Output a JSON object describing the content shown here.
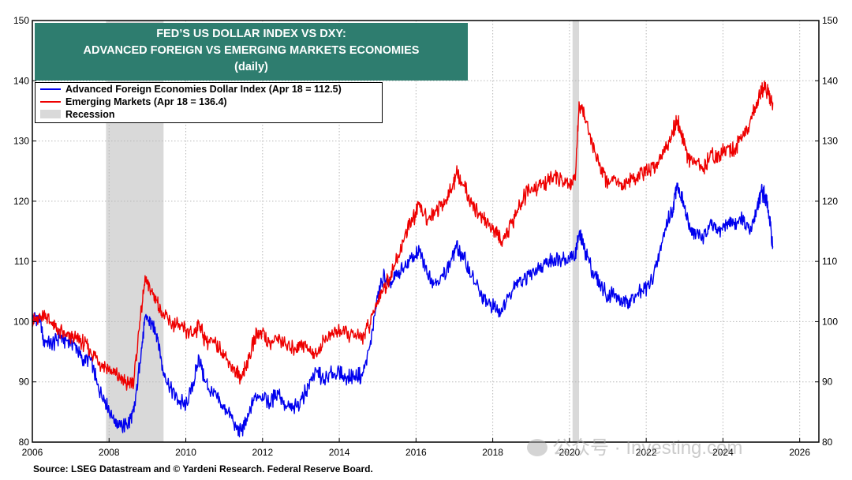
{
  "chart_data": {
    "type": "line",
    "title_lines": [
      "FED’S US DOLLAR INDEX VS DXY:",
      "ADVANCED FOREIGN VS EMERGING MARKETS ECONOMIES",
      "(daily)"
    ],
    "xlim": [
      2006,
      2026.5
    ],
    "ylim": [
      80,
      150
    ],
    "x_ticks": [
      2006,
      2008,
      2010,
      2012,
      2014,
      2016,
      2018,
      2020,
      2022,
      2024,
      2026
    ],
    "y_ticks": [
      80,
      90,
      100,
      110,
      120,
      130,
      140,
      150
    ],
    "grid": true,
    "legend_position": "top-left",
    "recessions": [
      {
        "start": 2007.92,
        "end": 2009.42
      },
      {
        "start": 2020.08,
        "end": 2020.25
      }
    ],
    "series": [
      {
        "name": "Advanced Foreign Economies Dollar Index (Apr 18 = 112.5)",
        "color": "#0000ee",
        "points": [
          [
            2006.0,
            100.5
          ],
          [
            2006.15,
            101.0
          ],
          [
            2006.3,
            97.0
          ],
          [
            2006.5,
            96.0
          ],
          [
            2006.7,
            97.5
          ],
          [
            2006.9,
            96.8
          ],
          [
            2007.1,
            96.5
          ],
          [
            2007.3,
            93.5
          ],
          [
            2007.5,
            94.0
          ],
          [
            2007.7,
            89.5
          ],
          [
            2007.9,
            87.0
          ],
          [
            2008.1,
            84.0
          ],
          [
            2008.3,
            82.5
          ],
          [
            2008.5,
            83.0
          ],
          [
            2008.65,
            85.0
          ],
          [
            2008.8,
            93.0
          ],
          [
            2008.95,
            101.0
          ],
          [
            2009.1,
            99.5
          ],
          [
            2009.25,
            98.0
          ],
          [
            2009.4,
            92.0
          ],
          [
            2009.6,
            89.0
          ],
          [
            2009.8,
            87.0
          ],
          [
            2010.0,
            86.0
          ],
          [
            2010.2,
            90.0
          ],
          [
            2010.35,
            94.0
          ],
          [
            2010.5,
            90.0
          ],
          [
            2010.7,
            88.0
          ],
          [
            2010.9,
            86.5
          ],
          [
            2011.1,
            85.0
          ],
          [
            2011.3,
            82.5
          ],
          [
            2011.45,
            81.8
          ],
          [
            2011.6,
            83.5
          ],
          [
            2011.8,
            87.5
          ],
          [
            2012.0,
            88.0
          ],
          [
            2012.2,
            86.5
          ],
          [
            2012.4,
            88.5
          ],
          [
            2012.6,
            86.0
          ],
          [
            2012.8,
            85.5
          ],
          [
            2013.0,
            87.0
          ],
          [
            2013.2,
            89.5
          ],
          [
            2013.4,
            92.0
          ],
          [
            2013.6,
            90.0
          ],
          [
            2013.8,
            91.5
          ],
          [
            2014.0,
            91.5
          ],
          [
            2014.2,
            90.5
          ],
          [
            2014.4,
            91.0
          ],
          [
            2014.6,
            91.0
          ],
          [
            2014.8,
            96.0
          ],
          [
            2015.0,
            104.0
          ],
          [
            2015.15,
            107.5
          ],
          [
            2015.3,
            106.0
          ],
          [
            2015.5,
            107.5
          ],
          [
            2015.7,
            109.0
          ],
          [
            2015.9,
            110.5
          ],
          [
            2016.1,
            111.5
          ],
          [
            2016.3,
            108.0
          ],
          [
            2016.5,
            106.5
          ],
          [
            2016.7,
            107.5
          ],
          [
            2016.9,
            110.0
          ],
          [
            2017.05,
            112.5
          ],
          [
            2017.25,
            110.5
          ],
          [
            2017.45,
            107.5
          ],
          [
            2017.65,
            105.0
          ],
          [
            2017.85,
            103.0
          ],
          [
            2018.05,
            102.5
          ],
          [
            2018.2,
            101.5
          ],
          [
            2018.4,
            104.0
          ],
          [
            2018.6,
            106.5
          ],
          [
            2018.8,
            107.0
          ],
          [
            2019.0,
            108.0
          ],
          [
            2019.2,
            108.5
          ],
          [
            2019.4,
            109.5
          ],
          [
            2019.6,
            110.5
          ],
          [
            2019.8,
            110.5
          ],
          [
            2020.0,
            110.5
          ],
          [
            2020.15,
            111.0
          ],
          [
            2020.25,
            114.5
          ],
          [
            2020.4,
            112.0
          ],
          [
            2020.6,
            108.5
          ],
          [
            2020.8,
            106.0
          ],
          [
            2021.0,
            104.5
          ],
          [
            2021.2,
            104.5
          ],
          [
            2021.4,
            103.0
          ],
          [
            2021.55,
            103.5
          ],
          [
            2021.7,
            104.0
          ],
          [
            2021.9,
            105.0
          ],
          [
            2022.1,
            106.0
          ],
          [
            2022.3,
            110.0
          ],
          [
            2022.5,
            115.5
          ],
          [
            2022.7,
            119.0
          ],
          [
            2022.8,
            123.0
          ],
          [
            2022.95,
            120.0
          ],
          [
            2023.1,
            116.0
          ],
          [
            2023.3,
            114.5
          ],
          [
            2023.5,
            114.0
          ],
          [
            2023.7,
            116.0
          ],
          [
            2023.9,
            115.0
          ],
          [
            2024.1,
            116.5
          ],
          [
            2024.3,
            116.5
          ],
          [
            2024.5,
            117.0
          ],
          [
            2024.7,
            114.5
          ],
          [
            2024.85,
            118.0
          ],
          [
            2025.0,
            121.5
          ],
          [
            2025.1,
            121.0
          ],
          [
            2025.2,
            117.5
          ],
          [
            2025.3,
            112.5
          ]
        ]
      },
      {
        "name": "Emerging Markets (Apr 18 = 136.4)",
        "color": "#ee0000",
        "points": [
          [
            2006.0,
            100.5
          ],
          [
            2006.15,
            100.0
          ],
          [
            2006.3,
            101.5
          ],
          [
            2006.5,
            99.5
          ],
          [
            2006.7,
            98.5
          ],
          [
            2006.9,
            97.5
          ],
          [
            2007.1,
            97.5
          ],
          [
            2007.3,
            96.5
          ],
          [
            2007.5,
            95.5
          ],
          [
            2007.7,
            93.5
          ],
          [
            2007.9,
            92.5
          ],
          [
            2008.1,
            91.5
          ],
          [
            2008.3,
            90.5
          ],
          [
            2008.5,
            89.5
          ],
          [
            2008.65,
            90.5
          ],
          [
            2008.8,
            100.0
          ],
          [
            2008.95,
            107.0
          ],
          [
            2009.1,
            105.0
          ],
          [
            2009.25,
            103.5
          ],
          [
            2009.4,
            101.0
          ],
          [
            2009.6,
            100.0
          ],
          [
            2009.8,
            99.0
          ],
          [
            2010.0,
            98.5
          ],
          [
            2010.2,
            98.0
          ],
          [
            2010.35,
            99.5
          ],
          [
            2010.5,
            97.0
          ],
          [
            2010.7,
            96.5
          ],
          [
            2010.9,
            95.5
          ],
          [
            2011.1,
            93.5
          ],
          [
            2011.3,
            91.5
          ],
          [
            2011.45,
            91.0
          ],
          [
            2011.6,
            93.0
          ],
          [
            2011.8,
            97.5
          ],
          [
            2012.0,
            98.5
          ],
          [
            2012.2,
            96.0
          ],
          [
            2012.4,
            97.5
          ],
          [
            2012.6,
            96.0
          ],
          [
            2012.8,
            95.5
          ],
          [
            2013.0,
            96.5
          ],
          [
            2013.2,
            95.5
          ],
          [
            2013.4,
            94.5
          ],
          [
            2013.6,
            97.0
          ],
          [
            2013.8,
            98.0
          ],
          [
            2014.0,
            98.5
          ],
          [
            2014.2,
            98.0
          ],
          [
            2014.4,
            97.5
          ],
          [
            2014.6,
            97.5
          ],
          [
            2014.8,
            99.5
          ],
          [
            2015.0,
            103.5
          ],
          [
            2015.15,
            105.5
          ],
          [
            2015.3,
            107.0
          ],
          [
            2015.5,
            110.0
          ],
          [
            2015.7,
            114.0
          ],
          [
            2015.9,
            117.0
          ],
          [
            2016.1,
            119.0
          ],
          [
            2016.3,
            117.0
          ],
          [
            2016.5,
            118.5
          ],
          [
            2016.7,
            119.5
          ],
          [
            2016.9,
            121.5
          ],
          [
            2017.05,
            124.5
          ],
          [
            2017.25,
            122.5
          ],
          [
            2017.45,
            119.5
          ],
          [
            2017.65,
            118.0
          ],
          [
            2017.85,
            116.5
          ],
          [
            2018.05,
            115.0
          ],
          [
            2018.2,
            113.5
          ],
          [
            2018.4,
            115.0
          ],
          [
            2018.6,
            117.5
          ],
          [
            2018.8,
            120.5
          ],
          [
            2019.0,
            122.0
          ],
          [
            2019.2,
            122.5
          ],
          [
            2019.4,
            123.0
          ],
          [
            2019.6,
            124.5
          ],
          [
            2019.8,
            123.5
          ],
          [
            2020.0,
            122.5
          ],
          [
            2020.15,
            123.5
          ],
          [
            2020.25,
            136.5
          ],
          [
            2020.4,
            134.0
          ],
          [
            2020.6,
            129.0
          ],
          [
            2020.8,
            126.0
          ],
          [
            2021.0,
            123.0
          ],
          [
            2021.2,
            124.0
          ],
          [
            2021.4,
            122.5
          ],
          [
            2021.55,
            123.5
          ],
          [
            2021.7,
            124.0
          ],
          [
            2021.9,
            124.5
          ],
          [
            2022.1,
            125.0
          ],
          [
            2022.3,
            126.5
          ],
          [
            2022.5,
            129.0
          ],
          [
            2022.7,
            131.5
          ],
          [
            2022.8,
            133.5
          ],
          [
            2022.95,
            130.5
          ],
          [
            2023.1,
            127.0
          ],
          [
            2023.3,
            126.0
          ],
          [
            2023.5,
            125.5
          ],
          [
            2023.7,
            128.0
          ],
          [
            2023.9,
            127.5
          ],
          [
            2024.1,
            129.0
          ],
          [
            2024.3,
            128.5
          ],
          [
            2024.5,
            130.5
          ],
          [
            2024.7,
            133.0
          ],
          [
            2024.85,
            135.5
          ],
          [
            2025.0,
            138.5
          ],
          [
            2025.1,
            139.0
          ],
          [
            2025.2,
            137.5
          ],
          [
            2025.3,
            136.4
          ]
        ]
      }
    ]
  },
  "legend": {
    "items": [
      {
        "label": "Advanced Foreign Economies Dollar Index (Apr 18 = 112.5)",
        "color": "#0000ee"
      },
      {
        "label": "Emerging Markets (Apr 18 = 136.4)",
        "color": "#ee0000"
      },
      {
        "label": "Recession",
        "color": "#d9d9d9"
      }
    ]
  },
  "source": "Source: LSEG Datastream and © Yardeni Research. Federal Reserve Board.",
  "watermark": "公众号 · Investing.com",
  "colors": {
    "title_bg": "#2e7d6f",
    "recession": "#d9d9d9",
    "grid": "#b8b8b8"
  }
}
